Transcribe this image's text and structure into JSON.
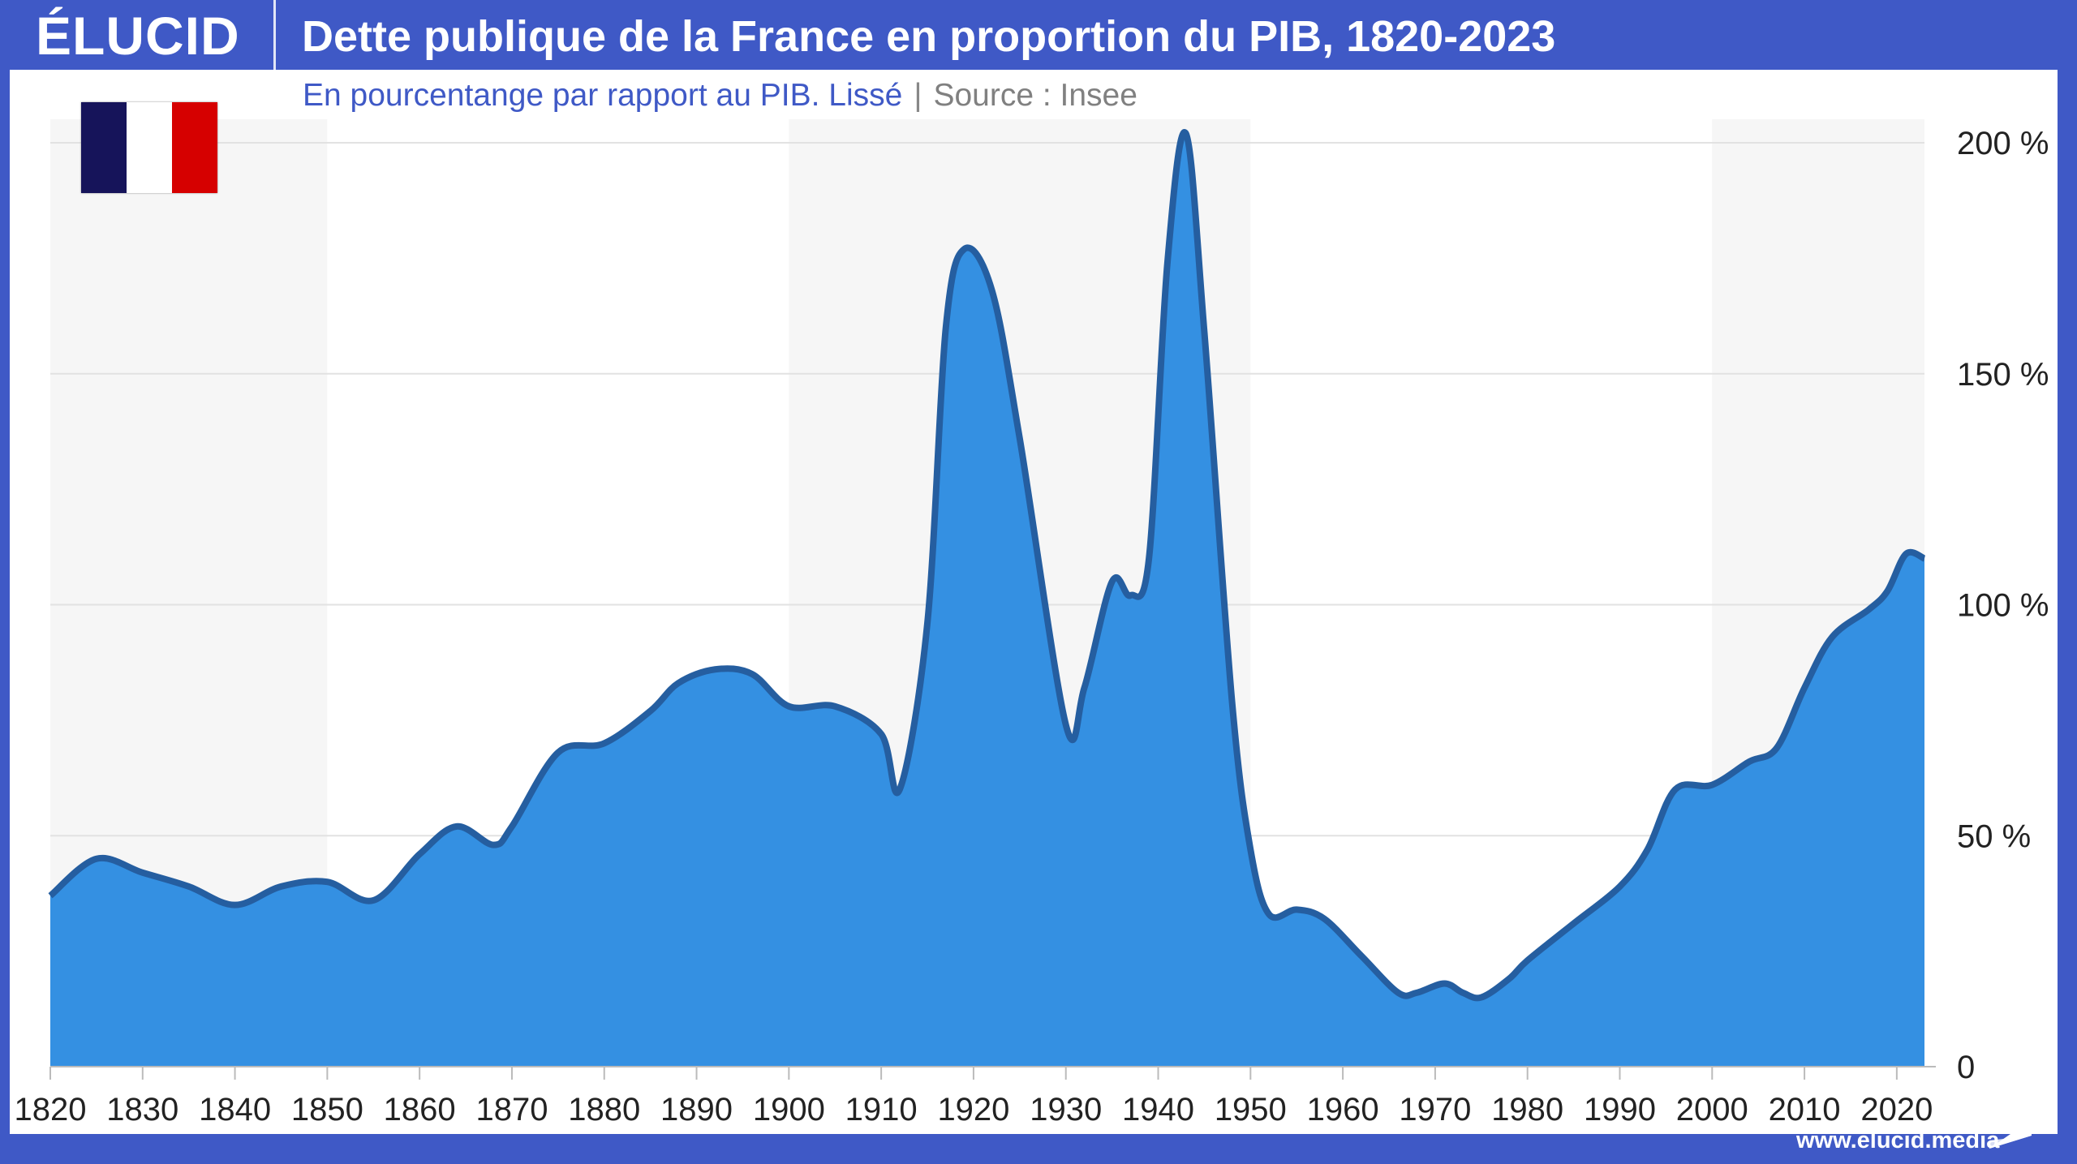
{
  "header": {
    "logo": "ÉLUCID",
    "title": "Dette publique de la France en proportion du PIB, 1820-2023"
  },
  "subtitle": {
    "text": "En pourcentange par rapport au PIB. Lissé",
    "separator": "|",
    "source": "Source : Insee"
  },
  "flag": {
    "colors": [
      "#16145a",
      "#ffffff",
      "#d60000"
    ]
  },
  "footer": {
    "url": "www.elucid.media"
  },
  "colors": {
    "frame": "#3f59c6",
    "fill": "#3490e2",
    "line": "#255ea0",
    "band": "#f6f6f6"
  },
  "chart_data": {
    "type": "area",
    "title": "Dette publique de la France en proportion du PIB, 1820-2023",
    "subtitle": "En pourcentange par rapport au PIB. Lissé | Source : Insee",
    "xlim": [
      1820,
      2023
    ],
    "ylim": [
      0,
      200
    ],
    "grid": true,
    "x_ticks": [
      "1820",
      "1830",
      "1840",
      "1850",
      "1860",
      "1870",
      "1880",
      "1890",
      "1900",
      "1910",
      "1920",
      "1930",
      "1940",
      "1950",
      "1960",
      "1970",
      "1980",
      "1990",
      "2000",
      "2010",
      "2020"
    ],
    "y_ticks": [
      {
        "v": 0,
        "label": "0"
      },
      {
        "v": 50,
        "label": "50 %"
      },
      {
        "v": 100,
        "label": "100 %"
      },
      {
        "v": 150,
        "label": "150 %"
      },
      {
        "v": 200,
        "label": "200 %"
      }
    ],
    "shaded_periods": [
      [
        1820,
        1850
      ],
      [
        1900,
        1950
      ],
      [
        2000,
        2023
      ]
    ],
    "series": [
      {
        "x": [
          1820,
          1825,
          1830,
          1835,
          1840,
          1845,
          1850,
          1855,
          1860,
          1864,
          1868,
          1870,
          1875,
          1880,
          1885,
          1888,
          1892,
          1896,
          1900,
          1905,
          1910,
          1912,
          1915,
          1917,
          1919,
          1922,
          1925,
          1930,
          1932,
          1935,
          1937,
          1939,
          1941,
          1943,
          1945,
          1948,
          1950,
          1952,
          1955,
          1958,
          1962,
          1966,
          1968,
          1971,
          1973,
          1975,
          1978,
          1980,
          1985,
          1990,
          1993,
          1996,
          2000,
          2004,
          2007,
          2010,
          2013,
          2017,
          2019,
          2021,
          2023
        ],
        "y": [
          37,
          45,
          42,
          39,
          35,
          39,
          40,
          36,
          46,
          52,
          48,
          52,
          68,
          70,
          77,
          83,
          86,
          85,
          78,
          78,
          72,
          60,
          96,
          160,
          177,
          168,
          136,
          74,
          82,
          105,
          102,
          110,
          174,
          202,
          159,
          79,
          47,
          33,
          34,
          32,
          24,
          16,
          16,
          18,
          16,
          15,
          19,
          23,
          31,
          39,
          47,
          60,
          61,
          66,
          69,
          82,
          93,
          99,
          103,
          111,
          110
        ]
      }
    ]
  }
}
